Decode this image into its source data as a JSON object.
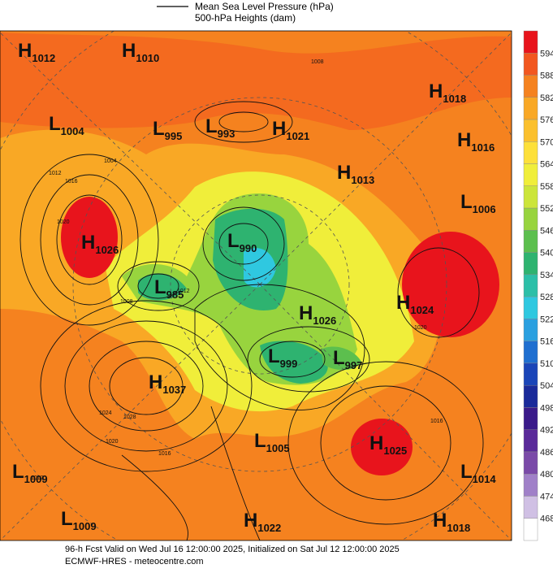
{
  "legend": [
    "Mean Sea Level Pressure (hPa)",
    "500-hPa Heights (dam)"
  ],
  "centers": [
    {
      "letter": "H",
      "value": 1012
    },
    {
      "letter": "H",
      "value": 1010
    },
    {
      "letter": "L",
      "value": 1004
    },
    {
      "letter": "L",
      "value": 995
    },
    {
      "letter": "L",
      "value": 993
    },
    {
      "letter": "H",
      "value": 1021
    },
    {
      "letter": "H",
      "value": 1018
    },
    {
      "letter": "H",
      "value": 1016
    },
    {
      "letter": "H",
      "value": 1013
    },
    {
      "letter": "L",
      "value": 1006
    },
    {
      "letter": "H",
      "value": 1026
    },
    {
      "letter": "L",
      "value": 990
    },
    {
      "letter": "L",
      "value": 985
    },
    {
      "letter": "H",
      "value": 1026
    },
    {
      "letter": "H",
      "value": 1024
    },
    {
      "letter": "L",
      "value": 999
    },
    {
      "letter": "L",
      "value": 997
    },
    {
      "letter": "H",
      "value": 1037
    },
    {
      "letter": "L",
      "value": 1005
    },
    {
      "letter": "H",
      "value": 1025
    },
    {
      "letter": "L",
      "value": 1009
    },
    {
      "letter": "L",
      "value": 1014
    },
    {
      "letter": "L",
      "value": 1009
    },
    {
      "letter": "H",
      "value": 1022
    },
    {
      "letter": "H",
      "value": 1018
    }
  ],
  "contour_labels": [
    1008,
    1004,
    1012,
    1016,
    1020,
    1008,
    1012,
    1024,
    1028,
    1020,
    1012,
    1016,
    1020,
    1016
  ],
  "colorbar": {
    "labels": [
      594,
      588,
      582,
      576,
      570,
      564,
      558,
      552,
      546,
      540,
      534,
      528,
      522,
      516,
      510,
      504,
      498,
      492,
      486,
      480,
      474,
      468
    ],
    "colors": [
      "#e8141c",
      "#f2571f",
      "#f5821f",
      "#f9a825",
      "#fbc02d",
      "#fde03a",
      "#f0ee3a",
      "#cce53a",
      "#98d43e",
      "#5cbf4e",
      "#2eb370",
      "#2cbfa8",
      "#2fc8e0",
      "#2aa0e0",
      "#1f6fd0",
      "#1a45b8",
      "#1a2a9a",
      "#3a1a8a",
      "#5a2a9a",
      "#7a4aa8",
      "#a080c8",
      "#d0c0e4",
      "#ffffff"
    ]
  },
  "footer": [
    "96-h Fcst Valid on Wed Jul 16 12:00:00 2025, Initialized on Sat Jul 12 12:00:00 2025",
    "ECMWF-HRES - meteocentre.com"
  ]
}
